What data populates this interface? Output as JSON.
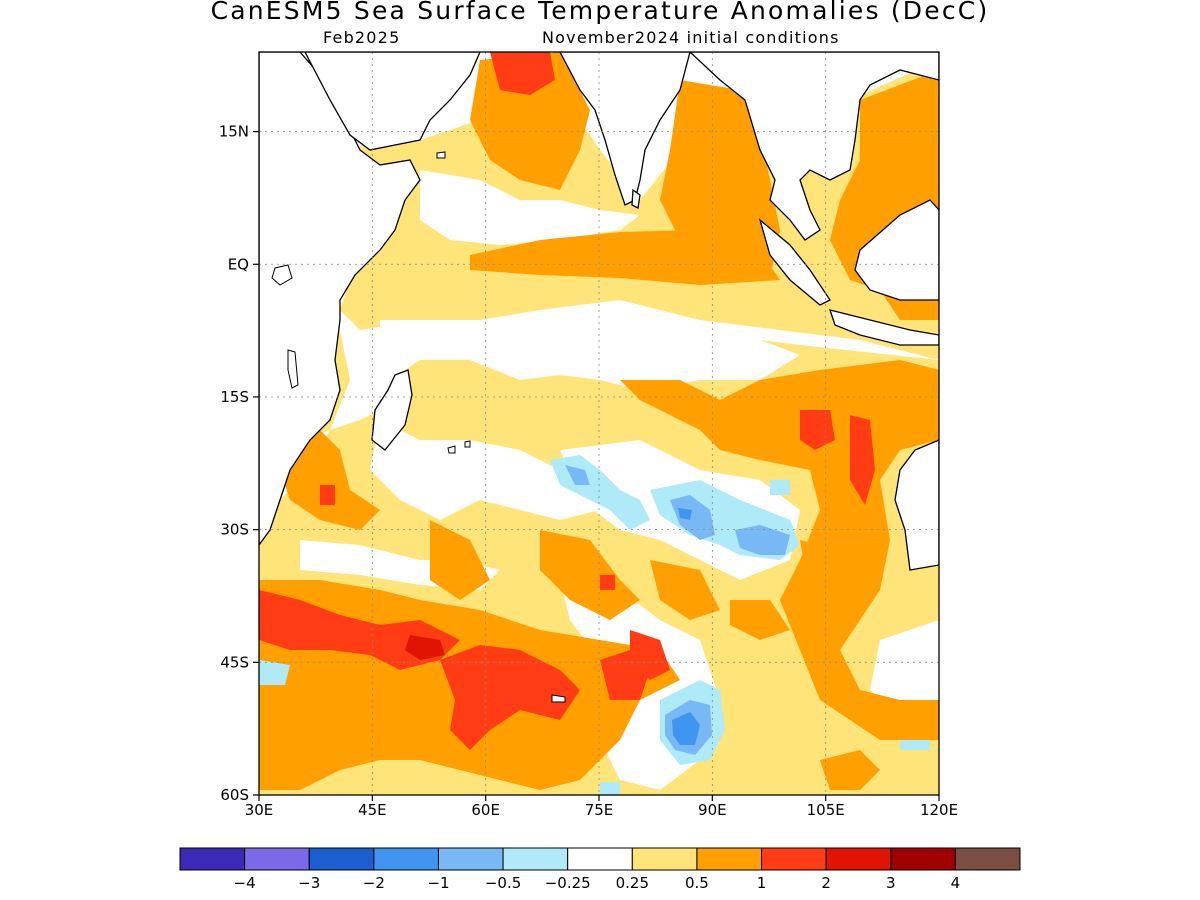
{
  "title": "CanESM5 Sea Surface Temperature Anomalies (DecC)",
  "subtitle_left": "Feb2025",
  "subtitle_right": "November2024 initial conditions",
  "map": {
    "lon_range": [
      30,
      120
    ],
    "lat_range": [
      -60,
      24
    ],
    "x_ticks": [
      {
        "value": 30,
        "label": "30E"
      },
      {
        "value": 45,
        "label": "45E"
      },
      {
        "value": 60,
        "label": "60E"
      },
      {
        "value": 75,
        "label": "75E"
      },
      {
        "value": 90,
        "label": "90E"
      },
      {
        "value": 105,
        "label": "105E"
      },
      {
        "value": 120,
        "label": "120E"
      }
    ],
    "y_ticks": [
      {
        "value": 15,
        "label": "15N"
      },
      {
        "value": 0,
        "label": "EQ"
      },
      {
        "value": -15,
        "label": "15S"
      },
      {
        "value": -30,
        "label": "30S"
      },
      {
        "value": -45,
        "label": "45S"
      },
      {
        "value": -60,
        "label": "60S"
      }
    ],
    "grid": "dotted"
  },
  "colorbar": {
    "colors": [
      "#3b2ab8",
      "#7b6ae8",
      "#1a5fd0",
      "#3f95f0",
      "#78b8f5",
      "#aeeaf7",
      "#ffffff",
      "#ffe47a",
      "#ffa000",
      "#ff3c14",
      "#e01400",
      "#a00000",
      "#7a4e42"
    ],
    "labels": [
      "−4",
      "−3",
      "−2",
      "−1",
      "−0.5",
      "−0.25",
      "0.25",
      "0.5",
      "1",
      "2",
      "3",
      "4"
    ]
  }
}
